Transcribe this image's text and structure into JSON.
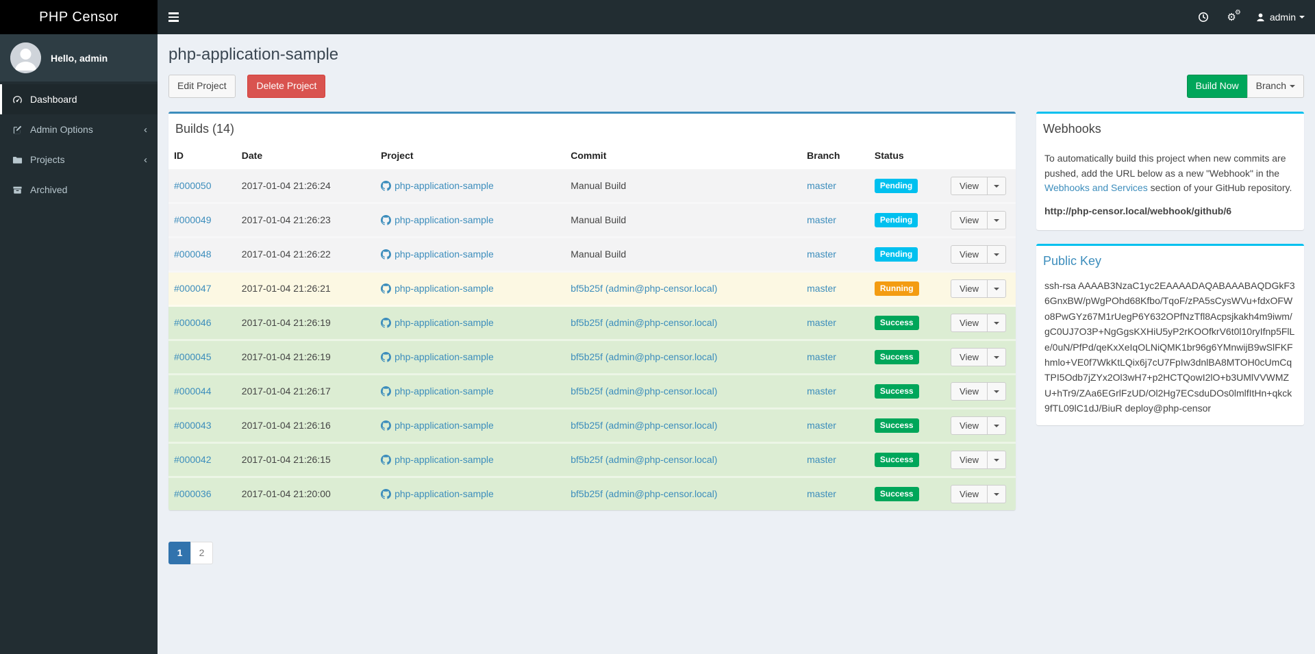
{
  "app": {
    "brand": "PHP Censor"
  },
  "navbar": {
    "user_label": "admin",
    "icons": {
      "menu": "hamburger-icon",
      "clock": "clock-icon",
      "settings": "cogs-icon",
      "user": "person-icon",
      "caret": "caret-down-icon"
    }
  },
  "sidebar": {
    "greeting": "Hello, admin",
    "items": [
      {
        "label": "Dashboard",
        "icon": "dashboard-gauge-icon",
        "active": true,
        "has_submenu": false
      },
      {
        "label": "Admin Options",
        "icon": "pencil-square-icon",
        "active": false,
        "has_submenu": true
      },
      {
        "label": "Projects",
        "icon": "folder-icon",
        "active": false,
        "has_submenu": true
      },
      {
        "label": "Archived",
        "icon": "archive-box-icon",
        "active": false,
        "has_submenu": false
      }
    ],
    "submenu_chevron": "‹"
  },
  "page": {
    "title": "php-application-sample"
  },
  "toolbar": {
    "edit_label": "Edit Project",
    "delete_label": "Delete Project",
    "build_now_label": "Build Now",
    "branch_label": "Branch"
  },
  "builds": {
    "title": "Builds (14)",
    "columns": [
      "ID",
      "Date",
      "Project",
      "Commit",
      "Branch",
      "Status"
    ],
    "view_label": "View",
    "rows": [
      {
        "id": "#000050",
        "date": "2017-01-04 21:26:24",
        "project": "php-application-sample",
        "commit": "Manual Build",
        "commit_is_link": false,
        "branch": "master",
        "status": "Pending",
        "status_class": "pending"
      },
      {
        "id": "#000049",
        "date": "2017-01-04 21:26:23",
        "project": "php-application-sample",
        "commit": "Manual Build",
        "commit_is_link": false,
        "branch": "master",
        "status": "Pending",
        "status_class": "pending"
      },
      {
        "id": "#000048",
        "date": "2017-01-04 21:26:22",
        "project": "php-application-sample",
        "commit": "Manual Build",
        "commit_is_link": false,
        "branch": "master",
        "status": "Pending",
        "status_class": "pending"
      },
      {
        "id": "#000047",
        "date": "2017-01-04 21:26:21",
        "project": "php-application-sample",
        "commit": "bf5b25f (admin@php-censor.local)",
        "commit_is_link": true,
        "branch": "master",
        "status": "Running",
        "status_class": "running"
      },
      {
        "id": "#000046",
        "date": "2017-01-04 21:26:19",
        "project": "php-application-sample",
        "commit": "bf5b25f (admin@php-censor.local)",
        "commit_is_link": true,
        "branch": "master",
        "status": "Success",
        "status_class": "success"
      },
      {
        "id": "#000045",
        "date": "2017-01-04 21:26:19",
        "project": "php-application-sample",
        "commit": "bf5b25f (admin@php-censor.local)",
        "commit_is_link": true,
        "branch": "master",
        "status": "Success",
        "status_class": "success"
      },
      {
        "id": "#000044",
        "date": "2017-01-04 21:26:17",
        "project": "php-application-sample",
        "commit": "bf5b25f (admin@php-censor.local)",
        "commit_is_link": true,
        "branch": "master",
        "status": "Success",
        "status_class": "success"
      },
      {
        "id": "#000043",
        "date": "2017-01-04 21:26:16",
        "project": "php-application-sample",
        "commit": "bf5b25f (admin@php-censor.local)",
        "commit_is_link": true,
        "branch": "master",
        "status": "Success",
        "status_class": "success"
      },
      {
        "id": "#000042",
        "date": "2017-01-04 21:26:15",
        "project": "php-application-sample",
        "commit": "bf5b25f (admin@php-censor.local)",
        "commit_is_link": true,
        "branch": "master",
        "status": "Success",
        "status_class": "success"
      },
      {
        "id": "#000036",
        "date": "2017-01-04 21:20:00",
        "project": "php-application-sample",
        "commit": "bf5b25f (admin@php-censor.local)",
        "commit_is_link": true,
        "branch": "master",
        "status": "Success",
        "status_class": "success"
      }
    ]
  },
  "pagination": {
    "pages": [
      "1",
      "2"
    ],
    "active": "1"
  },
  "webhooks": {
    "title": "Webhooks",
    "text_before": "To automatically build this project when new commits are pushed, add the URL below as a new \"Webhook\" in the ",
    "link_label": "Webhooks and Services",
    "text_after": " section of your GitHub repository.",
    "url": "http://php-censor.local/webhook/github/6"
  },
  "public_key": {
    "title": "Public Key",
    "key": "ssh-rsa AAAAB3NzaC1yc2EAAAADAQABAAABAQDGkF36GnxBW/pWgPOhd68Kfbo/TqoF/zPA5sCysWVu+fdxOFWo8PwGYz67M1rUegP6Y632OPfNzTfl8Acpsjkakh4m9iwm/gC0UJ7O3P+NgGgsKXHiU5yP2rKOOfkrV6t0l10ryIfnp5FlLe/0uN/PfPd/qeKxXeIqOLNiQMK1br96g6YMnwijB9wSlFKFhmlo+VE0f7WkKtLQix6j7cU7FpIw3dnlBA8MTOH0cUmCqTPI5Odb7jZYx2Ol3wH7+p2HCTQowI2lO+b3UMlVVWMZU+hTr9/ZAa6EGrlFzUD/Ol2Hg7ECsduDOs0lmlfItHn+qkck9fTL09lC1dJ/BiuR deploy@php-censor"
  },
  "colors": {
    "accent_blue": "#3c8dbc",
    "aqua": "#00c0ef",
    "success_green": "#00a65a",
    "warning_orange": "#f39c12",
    "danger_red": "#d9534f",
    "sidebar_dark": "#222d32",
    "body_bg": "#ecf0f5"
  }
}
